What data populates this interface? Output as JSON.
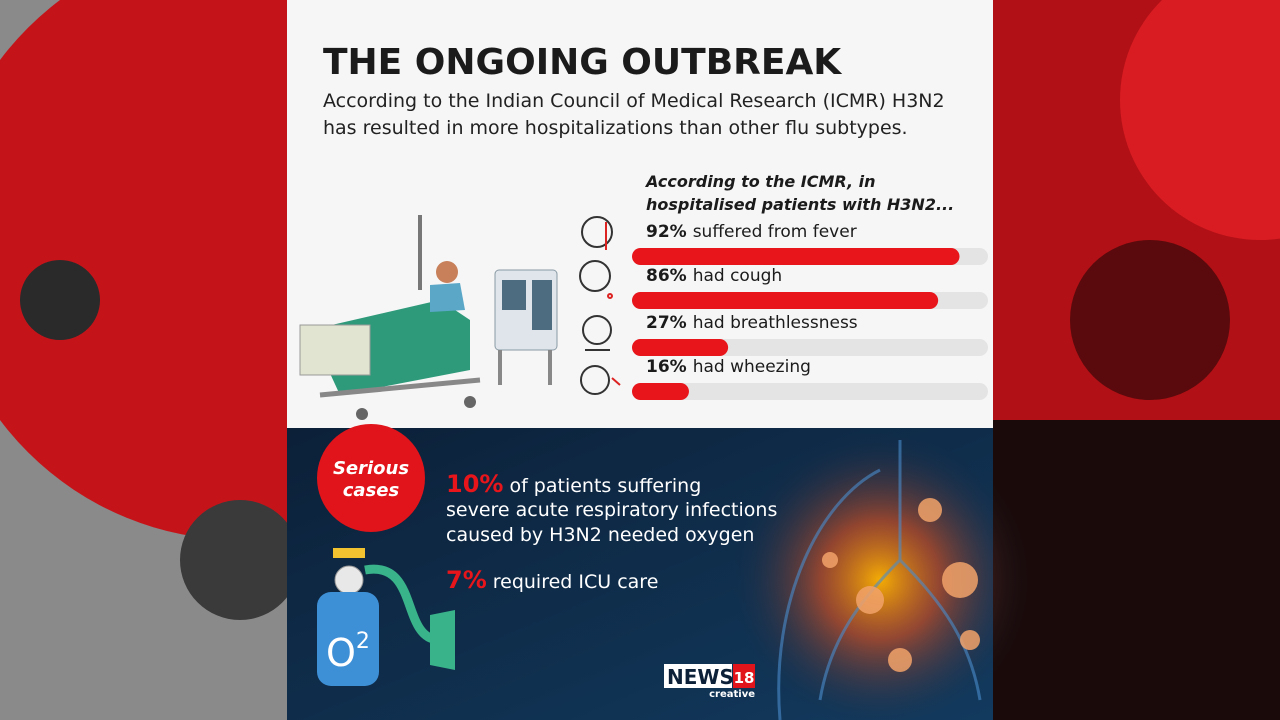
{
  "header": {
    "title": "THE ONGOING OUTBREAK",
    "intro": [
      "According to the Indian Council of Medical Research (ICMR) H3N2",
      "has resulted in more hospitalizations than other flu subtypes."
    ]
  },
  "chart_data": {
    "type": "bar",
    "orientation": "horizontal",
    "title": [
      "According to the ICMR, in",
      "hospitalised patients with H3N2..."
    ],
    "categories": [
      "suffered from fever",
      "had cough",
      "had breathlessness",
      "had wheezing"
    ],
    "values": [
      92,
      86,
      27,
      16
    ],
    "value_labels": [
      "92%",
      "86%",
      "27%",
      "16%"
    ],
    "xlim": [
      0,
      100
    ],
    "color": "#e8151b"
  },
  "serious_cases": {
    "badge": [
      "Serious",
      "cases"
    ],
    "oxygen": {
      "figure": "10%",
      "lines": [
        "of patients suffering",
        "severe acute respiratory infections",
        "caused by H3N2 needed oxygen"
      ]
    },
    "icu": {
      "figure": "7%",
      "text": "required ICU care"
    },
    "tank_label": {
      "letter": "O",
      "number": "2"
    }
  },
  "logo": {
    "name": "NEWS",
    "number": "18",
    "tagline": "creative"
  }
}
